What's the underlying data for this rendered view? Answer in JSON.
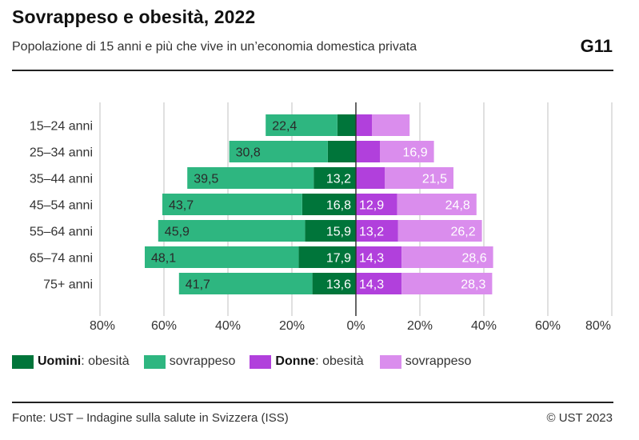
{
  "header": {
    "title": "Sovrappeso e obesità, 2022",
    "subtitle": "Popolazione di 15 anni e più che vive in un’economia domestica privata",
    "code": "G11"
  },
  "footer": {
    "source": "Fonte: UST – Indagine sulla salute in Svizzera (ISS)",
    "copyright": "© UST 2023"
  },
  "legend": {
    "items": [
      {
        "group": "Uomini",
        "label": "obesità",
        "color": "#00753a"
      },
      {
        "group": "",
        "label": "sovrappeso",
        "color": "#2eb680"
      },
      {
        "group": "Donne",
        "label": "obesità",
        "color": "#b140dc"
      },
      {
        "group": "",
        "label": "sovrappeso",
        "color": "#da8ded"
      }
    ]
  },
  "chart_data": {
    "type": "bar",
    "orientation": "horizontal-diverging-stacked",
    "title": "Sovrappeso e obesità, 2022",
    "subtitle": "Popolazione di 15 anni e più che vive in un’economia domestica privata",
    "xlabel": "",
    "ylabel": "",
    "x_range": [
      -80,
      80
    ],
    "x_ticks": [
      -80,
      -60,
      -40,
      -20,
      0,
      20,
      40,
      60,
      80
    ],
    "x_tick_labels": [
      "80%",
      "60%",
      "40%",
      "20%",
      "0%",
      "20%",
      "40%",
      "60%",
      "80%"
    ],
    "grid": true,
    "legend_position": "bottom",
    "categories": [
      "15–24 anni",
      "25–34 anni",
      "35–44 anni",
      "45–54 anni",
      "55–64 anni",
      "65–74 anni",
      "75+ anni"
    ],
    "series": [
      {
        "name": "Uomini: obesità",
        "side": "left",
        "color": "#00753a",
        "label_color": "#ffffff",
        "values": [
          5.8,
          8.8,
          13.2,
          16.8,
          15.9,
          17.9,
          13.6
        ],
        "labels": [
          "",
          "",
          "13,2",
          "16,8",
          "15,9",
          "17,9",
          "13,6"
        ]
      },
      {
        "name": "Uomini: sovrappeso",
        "side": "left",
        "color": "#2eb680",
        "label_color": "#2a2a2a",
        "values": [
          22.4,
          30.8,
          39.5,
          43.7,
          45.9,
          48.1,
          41.7
        ],
        "labels": [
          "22,4",
          "30,8",
          "39,5",
          "43,7",
          "45,9",
          "48,1",
          "41,7"
        ]
      },
      {
        "name": "Donne: obesità",
        "side": "right",
        "color": "#b140dc",
        "label_color": "#ffffff",
        "values": [
          5.0,
          7.5,
          9.0,
          12.9,
          13.2,
          14.3,
          14.3
        ],
        "labels": [
          "",
          "",
          "",
          "12,9",
          "13,2",
          "14,3",
          "14,3"
        ]
      },
      {
        "name": "Donne: sovrappeso",
        "side": "right",
        "color": "#da8ded",
        "label_color": "#ffffff",
        "values": [
          11.8,
          16.9,
          21.5,
          24.8,
          26.2,
          28.6,
          28.3
        ],
        "labels": [
          "",
          "16,9",
          "21,5",
          "24,8",
          "26,2",
          "28,6",
          "28,3"
        ]
      }
    ]
  }
}
